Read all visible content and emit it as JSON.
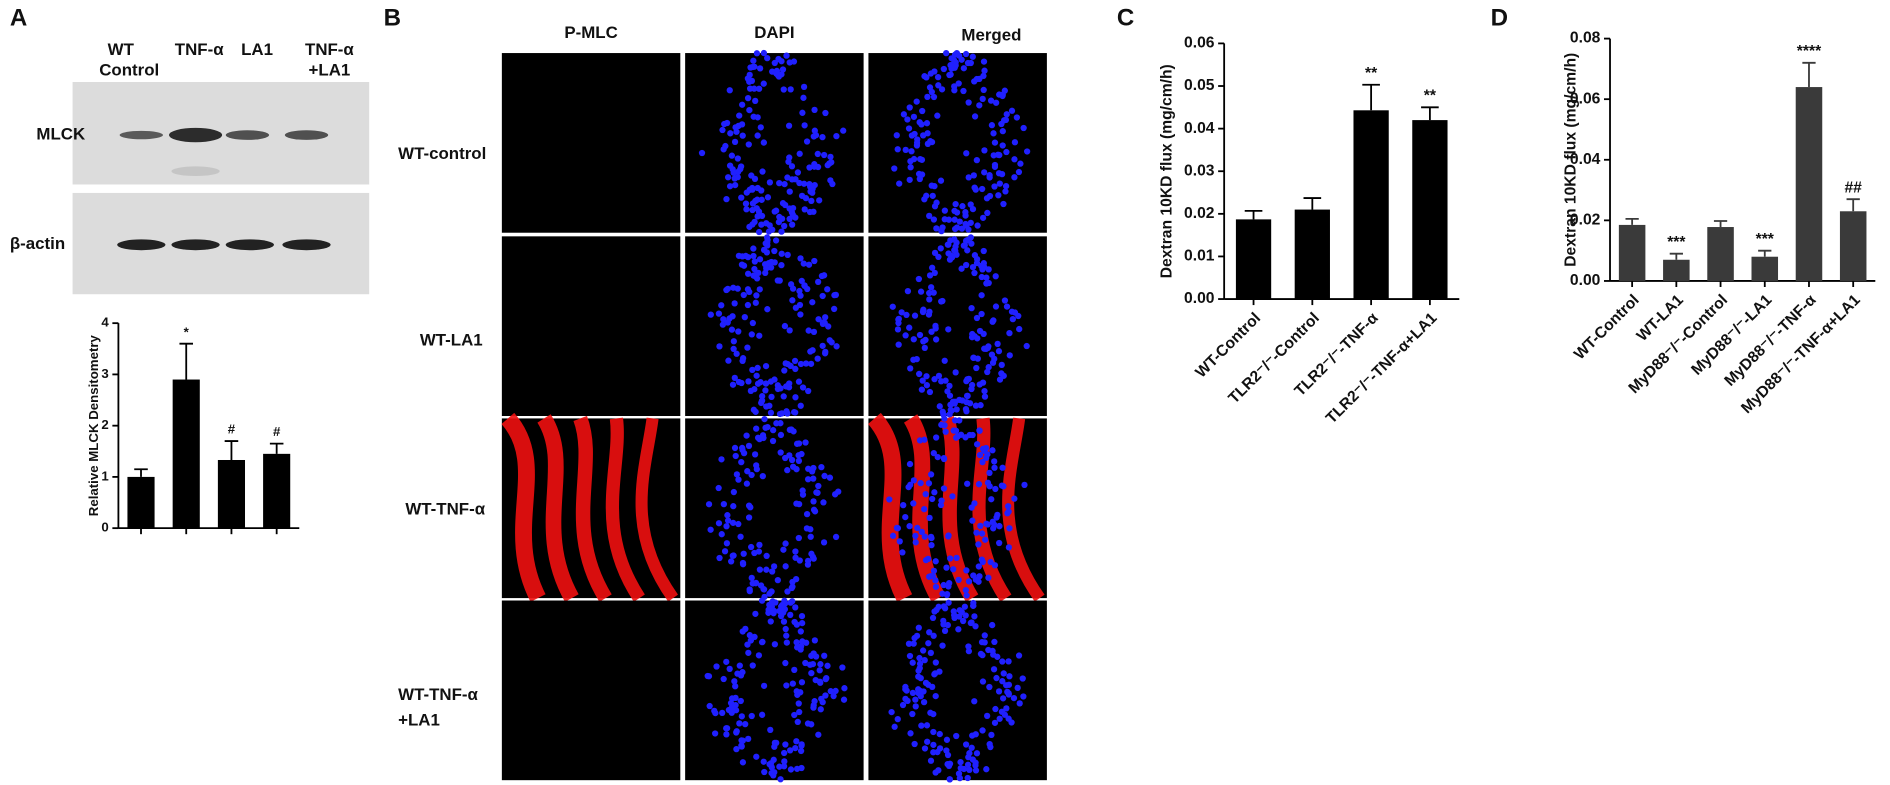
{
  "panel_labels": [
    "A",
    "B",
    "C",
    "D"
  ],
  "blot": {
    "lanes": [
      [
        "WT",
        "Control"
      ],
      [
        "TNF-α"
      ],
      [
        "LA1"
      ],
      [
        "TNF-α",
        "+LA1"
      ]
    ],
    "rows": [
      "MLCK",
      "β-actin"
    ]
  },
  "microscopy": {
    "columns": [
      "P-MLC",
      "DAPI",
      "Merged"
    ],
    "rows": [
      [
        "WT-control"
      ],
      [
        "WT-LA1"
      ],
      [
        "WT-TNF-α"
      ],
      [
        "WT-TNF-α",
        "+LA1"
      ]
    ]
  },
  "chart_data": [
    {
      "type": "bar",
      "ylabel": "Relative MLCK Densitometry",
      "values": [
        1.0,
        2.9,
        1.33,
        1.45
      ],
      "errors": [
        0.15,
        0.7,
        0.37,
        0.2
      ],
      "annotations": [
        null,
        "*",
        "#",
        "#"
      ],
      "color": "#000000",
      "ylim": [
        0,
        4
      ],
      "yticks": [
        0,
        1,
        2,
        3,
        4
      ]
    },
    {
      "type": "bar",
      "ylabel": "Dextran 10KD flux (mg/cm/h)",
      "categories": [
        "WT-Control",
        "TLR2⁻/⁻-Control",
        "TLR2⁻/⁻-TNF-α",
        "TLR2⁻/⁻-TNF-α+LA1"
      ],
      "values": [
        0.0187,
        0.021,
        0.0443,
        0.042
      ],
      "errors": [
        0.002,
        0.0027,
        0.006,
        0.003
      ],
      "annotations": [
        null,
        null,
        "**",
        "**"
      ],
      "color": "#000000",
      "ylim": [
        0,
        0.06
      ],
      "yticks": [
        {
          "value": 0,
          "label": "0.00"
        },
        {
          "value": 0.01,
          "label": "0.01"
        },
        {
          "value": 0.02,
          "label": "0.02"
        },
        {
          "value": 0.03,
          "label": "0.03"
        },
        {
          "value": 0.04,
          "label": "0.04"
        },
        {
          "value": 0.05,
          "label": "0.05"
        },
        {
          "value": 0.06,
          "label": "0.06"
        }
      ]
    },
    {
      "type": "bar",
      "ylabel": "Dextran 10KD flux (mg/cm/h)",
      "categories": [
        "WT-Control",
        "WT-LA1",
        "MyD88⁻/⁻-Control",
        "MyD88⁻/⁻-LA1",
        "MyD88⁻/⁻-TNF-α",
        "MyD88⁻/⁻-TNF-α+LA1"
      ],
      "values": [
        0.0185,
        0.007,
        0.0178,
        0.008,
        0.064,
        0.023
      ],
      "errors": [
        0.002,
        0.002,
        0.002,
        0.002,
        0.008,
        0.004
      ],
      "annotations": [
        null,
        "***",
        null,
        "***",
        "****",
        "##"
      ],
      "color": "#3a3a3a",
      "ylim": [
        0,
        0.08
      ],
      "yticks": [
        {
          "value": 0,
          "label": "0.00"
        },
        {
          "value": 0.02,
          "label": "0.02"
        },
        {
          "value": 0.04,
          "label": "0.04"
        },
        {
          "value": 0.06,
          "label": "0.06"
        },
        {
          "value": 0.08,
          "label": "0.08"
        }
      ]
    }
  ]
}
